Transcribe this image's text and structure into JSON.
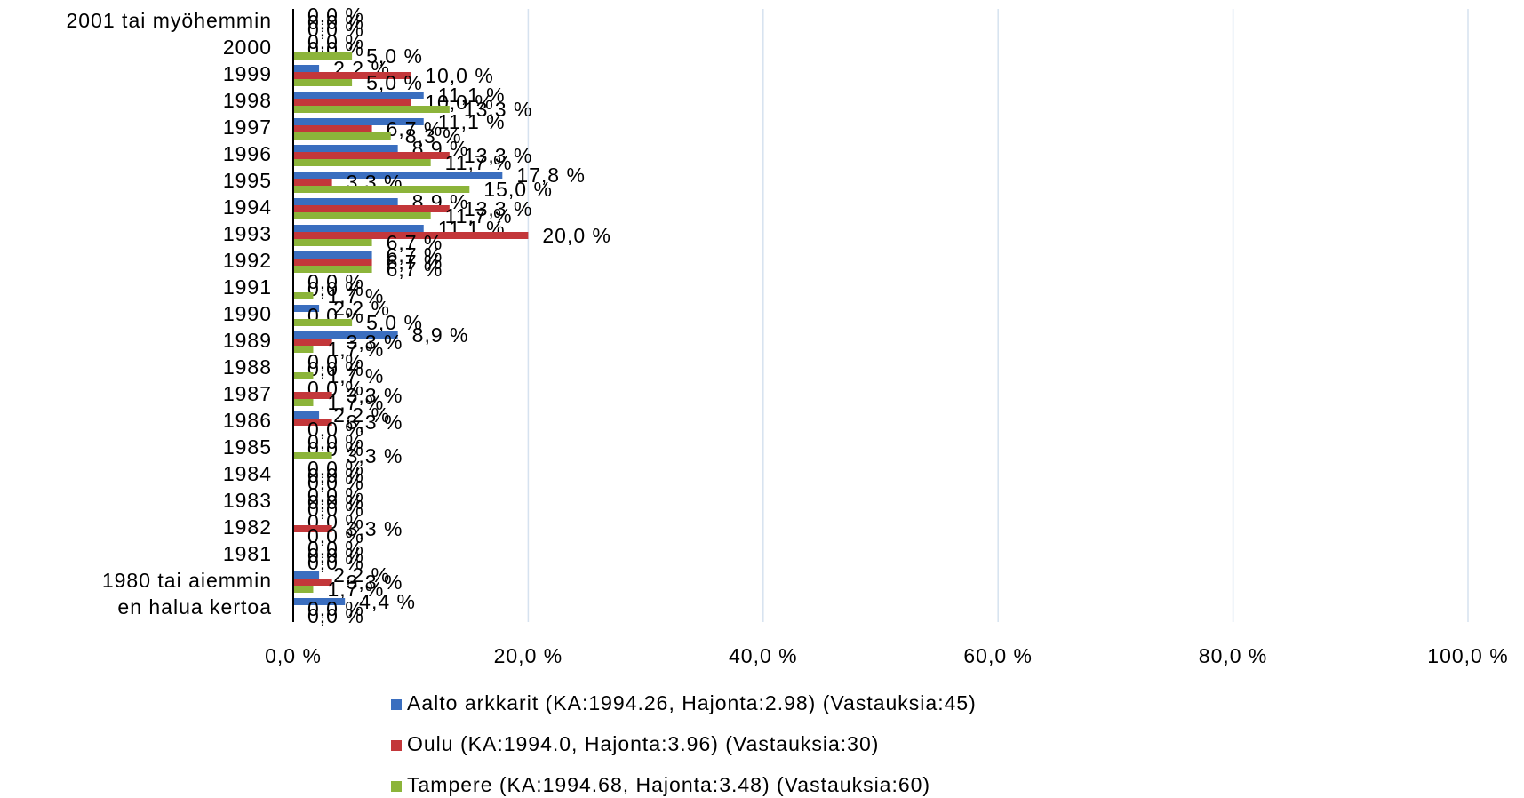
{
  "chart_data": {
    "type": "hbar",
    "categories": [
      "2001 tai myöhemmin",
      "2000",
      "1999",
      "1998",
      "1997",
      "1996",
      "1995",
      "1994",
      "1993",
      "1992",
      "1991",
      "1990",
      "1989",
      "1988",
      "1987",
      "1986",
      "1985",
      "1984",
      "1983",
      "1982",
      "1981",
      "1980 tai aiemmin",
      "en halua kertoa"
    ],
    "series": [
      {
        "name": "Aalto arkkarit (KA:1994.26, Hajonta:2.98) (Vastauksia:45)",
        "color": "#3a6ebf",
        "values": [
          0,
          0,
          2.2,
          11.1,
          11.1,
          8.9,
          17.8,
          8.9,
          11.1,
          6.7,
          0,
          2.2,
          8.9,
          0,
          0,
          2.2,
          0,
          0,
          0,
          0,
          0,
          2.2,
          4.4
        ],
        "value_labels": [
          "0,0 %",
          "0,0 %",
          "2,2 %",
          "11,1 %",
          "11,1 %",
          "8,9 %",
          "17,8 %",
          "8,9 %",
          "11,1 %",
          "6,7 %",
          "0,0 %",
          "2,2 %",
          "8,9 %",
          "0,0 %",
          "0,0 %",
          "2,2 %",
          "0,0 %",
          "0,0 %",
          "0,0 %",
          "0,0 %",
          "0,0 %",
          "2,2 %",
          "4,4 %"
        ]
      },
      {
        "name": "Oulu (KA:1994.0, Hajonta:3.96) (Vastauksia:30)",
        "color": "#c3373a",
        "values": [
          0,
          0,
          10,
          10,
          6.7,
          13.3,
          3.3,
          13.3,
          20,
          6.7,
          0,
          0,
          3.3,
          0,
          3.3,
          3.3,
          0,
          0,
          0,
          3.3,
          0,
          3.3,
          0
        ],
        "value_labels": [
          "0,0 %",
          "0,0 %",
          "10,0 %",
          "10,0 %",
          "6,7 %",
          "13,3 %",
          "3,3 %",
          "13,3 %",
          "20,0 %",
          "6,7 %",
          "0,0 %",
          "0,0 %",
          "3,3 %",
          "0,0 %",
          "3,3 %",
          "3,3 %",
          "0,0 %",
          "0,0 %",
          "0,0 %",
          "3,3 %",
          "0,0 %",
          "3,3 %",
          "0,0 %"
        ]
      },
      {
        "name": "Tampere (KA:1994.68, Hajonta:3.48) (Vastauksia:60)",
        "color": "#8cb43a",
        "values": [
          0,
          5,
          5,
          13.3,
          8.3,
          11.7,
          15,
          11.7,
          6.7,
          6.7,
          1.7,
          5,
          1.7,
          1.7,
          1.7,
          0,
          3.3,
          0,
          0,
          0,
          0,
          1.7,
          0
        ],
        "value_labels": [
          "0,0 %",
          "5,0 %",
          "5,0 %",
          "13,3 %",
          "8,3 %",
          "11,7 %",
          "15,0 %",
          "11,7 %",
          "6,7 %",
          "6,7 %",
          "1,7 %",
          "5,0 %",
          "1,7 %",
          "1,7 %",
          "1,7 %",
          "0,0 %",
          "3,3 %",
          "0,0 %",
          "0,0 %",
          "0,0 %",
          "0,0 %",
          "1,7 %",
          "0,0 %"
        ]
      }
    ],
    "xlim": [
      0,
      100
    ],
    "xticks": [
      {
        "value": 0,
        "label": "0,0 %"
      },
      {
        "value": 20,
        "label": "20,0 %"
      },
      {
        "value": 40,
        "label": "40,0 %"
      },
      {
        "value": 60,
        "label": "60,0 %"
      },
      {
        "value": 80,
        "label": "80,0 %"
      },
      {
        "value": 100,
        "label": "100,0 %"
      }
    ],
    "grid": true,
    "legend": "bottom"
  }
}
